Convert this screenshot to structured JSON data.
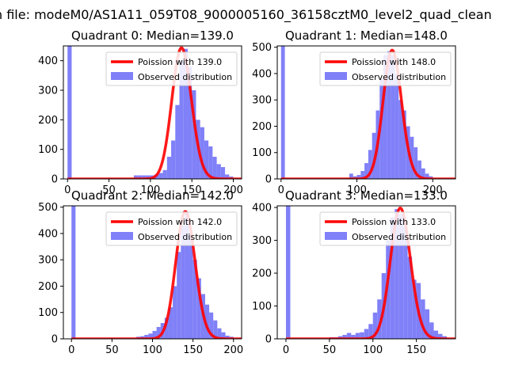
{
  "figure_title": "n file: modeM0/AS1A11_059T08_9000005160_36158cztM0_level2_quad_clean",
  "chart_data": [
    {
      "type": "bar",
      "title": "Quadrant 0: Median=139.0",
      "median": 139.0,
      "xlim": [
        -5,
        210
      ],
      "ylim": [
        0,
        450
      ],
      "xticks": [
        0,
        50,
        100,
        150,
        200
      ],
      "yticks": [
        0,
        100,
        200,
        300,
        400
      ],
      "bin_width": 5,
      "hist_x": [
        0,
        80,
        85,
        90,
        95,
        100,
        105,
        110,
        115,
        120,
        125,
        130,
        135,
        140,
        145,
        150,
        155,
        160,
        165,
        170,
        175,
        180,
        185,
        190,
        195
      ],
      "hist_y": [
        450,
        12,
        12,
        12,
        12,
        12,
        15,
        20,
        30,
        75,
        130,
        250,
        400,
        440,
        380,
        300,
        200,
        175,
        130,
        110,
        75,
        50,
        40,
        15,
        8
      ],
      "legend": [
        "Poission with 139.0",
        "Observed distribution"
      ]
    },
    {
      "type": "bar",
      "title": "Quadrant 1: Median=148.0",
      "median": 148.0,
      "xlim": [
        -5,
        230
      ],
      "ylim": [
        0,
        505
      ],
      "xticks": [
        0,
        100,
        200
      ],
      "xtick_labels": [
        "0",
        "100",
        "200"
      ],
      "yticks": [
        0,
        100,
        200,
        300,
        400,
        500
      ],
      "bin_width": 5,
      "hist_x": [
        0,
        90,
        95,
        100,
        105,
        110,
        115,
        120,
        125,
        130,
        135,
        140,
        145,
        150,
        155,
        160,
        165,
        170,
        175,
        180,
        185,
        190,
        195
      ],
      "hist_y": [
        505,
        20,
        10,
        15,
        30,
        60,
        110,
        175,
        260,
        380,
        470,
        485,
        470,
        400,
        300,
        260,
        200,
        160,
        120,
        70,
        40,
        20,
        10
      ],
      "legend": [
        "Poission with 148.0",
        "Observed distribution"
      ]
    },
    {
      "type": "bar",
      "title": "Quadrant 2: Median=142.0",
      "median": 142.0,
      "xlim": [
        -10,
        210
      ],
      "ylim": [
        0,
        505
      ],
      "xticks": [
        0,
        50,
        100,
        150,
        200
      ],
      "yticks": [
        0,
        100,
        200,
        300,
        400,
        500
      ],
      "bin_width": 5,
      "hist_x": [
        0,
        80,
        85,
        90,
        95,
        100,
        105,
        110,
        115,
        120,
        125,
        130,
        135,
        140,
        145,
        150,
        155,
        160,
        165,
        170,
        175,
        180,
        185,
        190,
        195
      ],
      "hist_y": [
        505,
        8,
        10,
        15,
        20,
        30,
        45,
        60,
        80,
        120,
        200,
        330,
        430,
        480,
        400,
        300,
        230,
        170,
        130,
        100,
        70,
        40,
        25,
        12,
        8
      ],
      "legend": [
        "Poission with 142.0",
        "Observed distribution"
      ]
    },
    {
      "type": "bar",
      "title": "Quadrant 3: Median=133.0",
      "median": 133.0,
      "xlim": [
        -10,
        195
      ],
      "ylim": [
        0,
        405
      ],
      "xticks": [
        0,
        50,
        100,
        150
      ],
      "yticks": [
        0,
        100,
        200,
        300,
        400
      ],
      "bin_width": 5,
      "hist_x": [
        0,
        50,
        55,
        60,
        65,
        70,
        75,
        80,
        85,
        90,
        95,
        100,
        105,
        110,
        115,
        120,
        125,
        130,
        135,
        140,
        145,
        150,
        155,
        160,
        165,
        170,
        175,
        180
      ],
      "hist_y": [
        405,
        5,
        5,
        8,
        12,
        18,
        12,
        18,
        20,
        30,
        45,
        80,
        120,
        200,
        300,
        370,
        395,
        380,
        340,
        250,
        180,
        170,
        120,
        90,
        50,
        25,
        15,
        8
      ],
      "legend": [
        "Poission with 133.0",
        "Observed distribution"
      ]
    }
  ],
  "colors": {
    "poisson_line": "#ff0000",
    "histogram": "#8080f8"
  }
}
